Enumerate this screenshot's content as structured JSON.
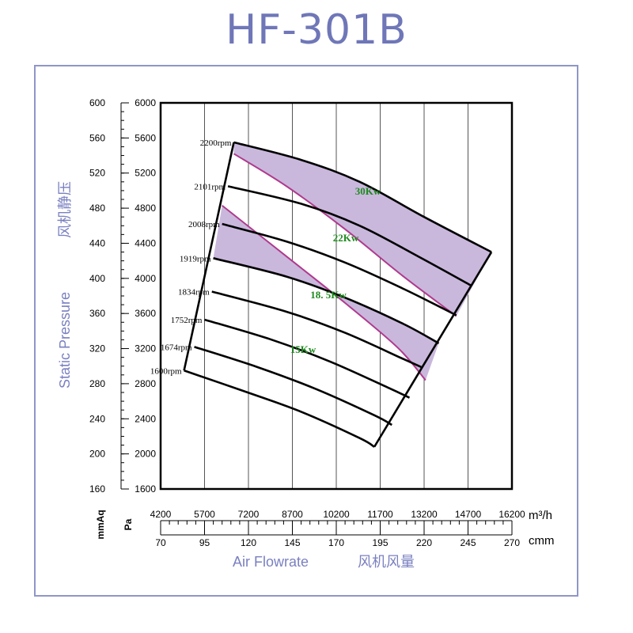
{
  "title": "HF-301B",
  "chart_data": {
    "type": "line",
    "title": "HF-301B",
    "xlabel": "Air Flowrate",
    "xlabel_cn": "风机风量",
    "ylabel": "Static Pressure",
    "ylabel_cn": "风机静压",
    "x_unit_primary": "m³/h",
    "x_unit_secondary": "cmm",
    "y_unit_primary": "Pa",
    "y_unit_secondary": "mmAq",
    "xlim": [
      4200,
      16200
    ],
    "ylim": [
      1600,
      6000
    ],
    "x_ticks_m3h": [
      "4200",
      "5700",
      "7200",
      "8700",
      "10200",
      "11700",
      "13200",
      "14700",
      "16200"
    ],
    "x_ticks_cmm": [
      "70",
      "95",
      "120",
      "145",
      "170",
      "195",
      "220",
      "245",
      "270"
    ],
    "y_ticks_pa": [
      "6000",
      "5600",
      "5200",
      "4800",
      "4400",
      "4000",
      "3600",
      "3200",
      "2800",
      "2400",
      "2000",
      "1600"
    ],
    "y_ticks_mmaq": [
      "600",
      "560",
      "520",
      "480",
      "440",
      "400",
      "360",
      "320",
      "280",
      "240",
      "200",
      "160"
    ],
    "grid": true,
    "series": [
      {
        "name": "2200rpm",
        "x": [
          6700,
          9000,
          11000,
          13200,
          15500
        ],
        "y": [
          5550,
          5350,
          5100,
          4700,
          4300
        ]
      },
      {
        "name": "2101rpm",
        "x": [
          6500,
          9000,
          11000,
          13000,
          14800
        ],
        "y": [
          5050,
          4850,
          4600,
          4250,
          3920
        ]
      },
      {
        "name": "2008rpm",
        "x": [
          6300,
          8500,
          10500,
          12500,
          14300
        ],
        "y": [
          4620,
          4420,
          4180,
          3880,
          3580
        ]
      },
      {
        "name": "1919rpm",
        "x": [
          6000,
          8500,
          10500,
          12500,
          13700
        ],
        "y": [
          4230,
          4020,
          3780,
          3480,
          3260
        ]
      },
      {
        "name": "1834rpm",
        "x": [
          5950,
          8500,
          10500,
          12500,
          13100
        ],
        "y": [
          3850,
          3620,
          3380,
          3080,
          2990
        ]
      },
      {
        "name": "1752rpm",
        "x": [
          5700,
          8000,
          10000,
          12000,
          12700
        ],
        "y": [
          3530,
          3300,
          3050,
          2750,
          2640
        ]
      },
      {
        "name": "1674rpm",
        "x": [
          5350,
          7500,
          9500,
          11500,
          12100
        ],
        "y": [
          3220,
          2990,
          2740,
          2440,
          2330
        ]
      },
      {
        "name": "1600rpm",
        "x": [
          5000,
          7000,
          9000,
          11000,
          11500
        ],
        "y": [
          2950,
          2720,
          2480,
          2180,
          2080
        ]
      }
    ],
    "boundary": {
      "low_flow": {
        "x": [
          6700,
          5000
        ],
        "y": [
          5550,
          2950
        ]
      },
      "high_flow": {
        "x": [
          15500,
          11500
        ],
        "y": [
          4300,
          2080
        ]
      }
    },
    "power_bands": [
      {
        "label": "30Kw",
        "boundary_top": "2200rpm",
        "boundary_bottom": {
          "x": [
            6700,
            8500,
            10500,
            12500,
            14300
          ],
          "y": [
            5420,
            5050,
            4560,
            4020,
            3570
          ]
        }
      },
      {
        "label": "22Kw"
      },
      {
        "label": "18. 5Kw",
        "boundary_top": {
          "x": [
            6300,
            8500,
            10500,
            12300,
            13250
          ],
          "y": [
            4830,
            4250,
            3720,
            3210,
            2840
          ]
        },
        "boundary_bottom": {
          "x": [
            6000,
            8500,
            10500,
            12500,
            13700
          ],
          "y": [
            4230,
            4020,
            3780,
            3480,
            3260
          ]
        }
      },
      {
        "label": "15Kw"
      }
    ],
    "band_color": "#c9b8dc",
    "band_edge_color": "#b03a8e"
  },
  "axis_labels": {
    "xlabel": "Air Flowrate",
    "xlabel_cn": "风机风量",
    "ylabel": "Static Pressure",
    "ylabel_cn": "风机静压",
    "unit_x1": "m³/h",
    "unit_x2": "cmm",
    "unit_y1": "Pa",
    "unit_y2": "mmAq"
  },
  "colors": {
    "title": "#6f77b8",
    "frame": "#8f96c8",
    "axis_label": "#7a80c0",
    "power_label": "#1f8a1f"
  }
}
